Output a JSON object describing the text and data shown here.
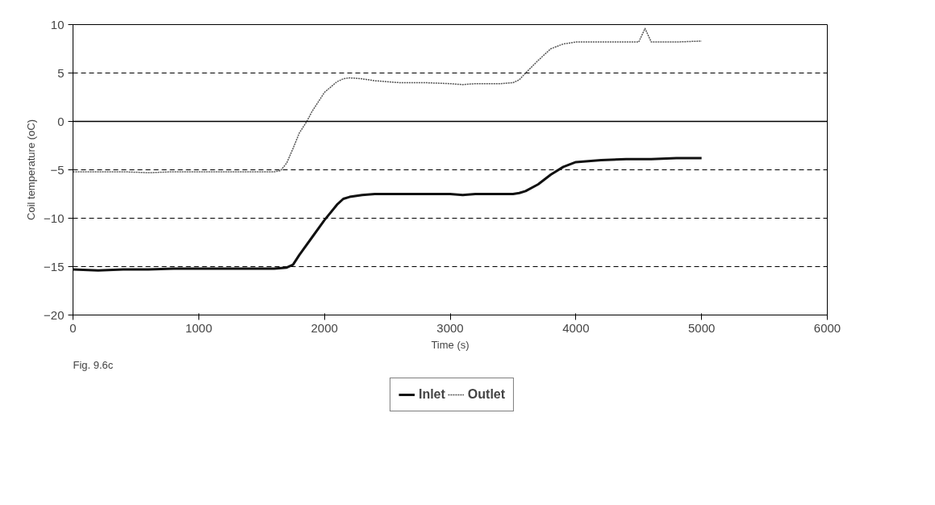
{
  "chart_data": {
    "type": "line",
    "xlabel": "Time (s)",
    "ylabel": "Coil temperature (oC)",
    "annotations": [
      "Fig. 9.6c"
    ],
    "xlim": [
      0,
      6000
    ],
    "xticks": [
      0,
      1000,
      2000,
      3000,
      4000,
      5000,
      6000
    ],
    "ylim": [
      -20,
      10
    ],
    "yticks": [
      -20,
      -15,
      -10,
      -5,
      0,
      5,
      10
    ],
    "grid": "y",
    "legend": "bottom",
    "ref_lines": [
      {
        "axis": "y",
        "value": 0,
        "color": "#000000",
        "line_style": "solid"
      }
    ],
    "series": [
      {
        "name": "Inlet",
        "color": "#111111",
        "line_style": "solid",
        "x": [
          0,
          200,
          400,
          600,
          800,
          1000,
          1200,
          1400,
          1600,
          1700,
          1750,
          1800,
          1900,
          2000,
          2100,
          2150,
          2200,
          2300,
          2400,
          2600,
          2800,
          3000,
          3100,
          3200,
          3400,
          3500,
          3550,
          3600,
          3700,
          3800,
          3900,
          4000,
          4200,
          4400,
          4600,
          4800,
          5000
        ],
        "values": [
          -15.3,
          -15.4,
          -15.3,
          -15.3,
          -15.2,
          -15.2,
          -15.2,
          -15.2,
          -15.2,
          -15.1,
          -14.8,
          -13.8,
          -12.0,
          -10.2,
          -8.6,
          -8.0,
          -7.8,
          -7.6,
          -7.5,
          -7.5,
          -7.5,
          -7.5,
          -7.6,
          -7.5,
          -7.5,
          -7.5,
          -7.4,
          -7.2,
          -6.5,
          -5.5,
          -4.7,
          -4.2,
          -4.0,
          -3.9,
          -3.9,
          -3.8,
          -3.8
        ]
      },
      {
        "name": "Outlet",
        "color": "#555555",
        "line_style": "dotted",
        "x": [
          0,
          200,
          400,
          600,
          800,
          1000,
          1200,
          1400,
          1600,
          1650,
          1700,
          1750,
          1800,
          1860,
          1900,
          2000,
          2100,
          2150,
          2200,
          2300,
          2400,
          2600,
          2800,
          3000,
          3100,
          3200,
          3400,
          3500,
          3550,
          3600,
          3700,
          3800,
          3900,
          4000,
          4200,
          4400,
          4500,
          4550,
          4600,
          4800,
          5000
        ],
        "values": [
          -5.2,
          -5.2,
          -5.2,
          -5.3,
          -5.2,
          -5.2,
          -5.2,
          -5.2,
          -5.2,
          -5.1,
          -4.3,
          -2.8,
          -1.2,
          0,
          1.0,
          3.0,
          4.1,
          4.4,
          4.5,
          4.4,
          4.2,
          4.0,
          4.0,
          3.9,
          3.8,
          3.9,
          3.9,
          4.0,
          4.3,
          5.0,
          6.3,
          7.5,
          8.0,
          8.2,
          8.2,
          8.2,
          8.2,
          9.6,
          8.2,
          8.2,
          8.3
        ]
      }
    ]
  }
}
